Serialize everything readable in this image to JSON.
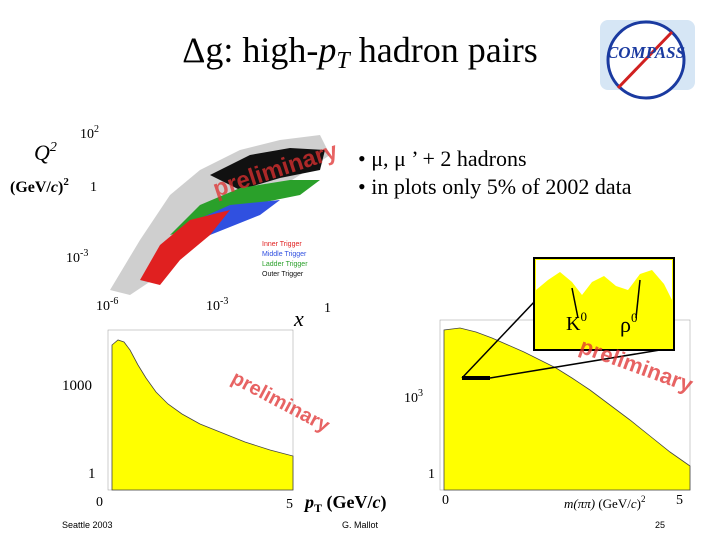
{
  "title": {
    "start": "Δg: high-",
    "p": "p",
    "sub": "T",
    "end": " hadron pairs"
  },
  "logo": "COMPASS",
  "bullets": [
    "• μ, μ ’ + 2 hadrons",
    "• in plots only 5% of 2002 data"
  ],
  "scatter": {
    "ylabel": {
      "q": "Q",
      "sup": "2",
      "units": "(GeV/",
      "c": "c",
      "close": ")",
      "usup": "2"
    },
    "yticks": [
      {
        "base": "10",
        "exp": "2"
      },
      {
        "base": "1"
      },
      {
        "base": "10",
        "exp": "-3"
      }
    ],
    "xticks": [
      {
        "base": "10",
        "exp": "-6"
      },
      {
        "base": "10",
        "exp": "-3"
      },
      {
        "base": "1"
      }
    ],
    "xlabel": "x",
    "watermark": "preliminary",
    "legend": [
      "Inner Trigger",
      "Middle Trigger",
      "Ladder Trigger",
      "Outer Trigger"
    ]
  },
  "pt_hist": {
    "yticks": [
      "1000",
      "1"
    ],
    "xticks": [
      "0",
      "5"
    ],
    "xlabel": {
      "p": "p",
      "sub": "T",
      "units": " (GeV/",
      "c": "c",
      "close": ")"
    },
    "watermark": "preliminary"
  },
  "mass_hist": {
    "yticks": [
      {
        "base": "10",
        "exp": "3"
      },
      {
        "base": "1"
      }
    ],
    "xticks": [
      "0",
      "5"
    ],
    "xlabel": {
      "m": "m(ππ)",
      "units": " (GeV/",
      "c": "c",
      "close": ")",
      "sup": "2"
    },
    "inset": {
      "k": "K",
      "ksup": "0",
      "rho": "ρ",
      "rhosup": "0"
    },
    "watermark": "preliminary"
  },
  "footer": {
    "left": "Seattle 2003",
    "center": "G. Mallot",
    "right": "25"
  }
}
